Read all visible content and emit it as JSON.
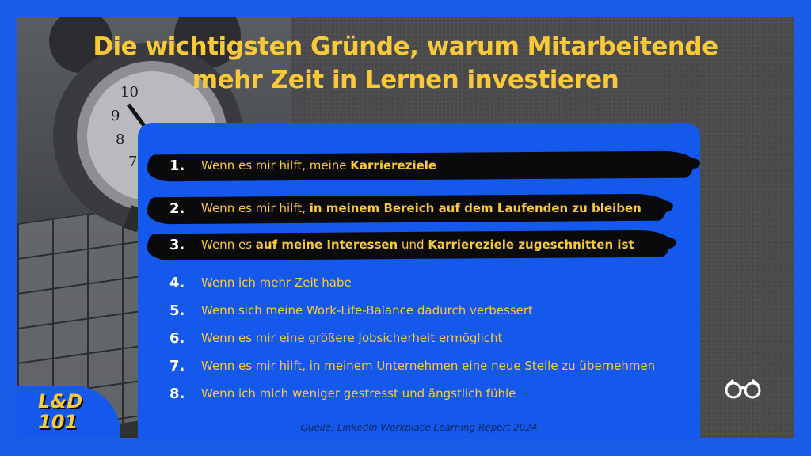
{
  "title_line1": "Die wichtigsten Gründe, warum Mitarbeitende",
  "title_line2": "mehr Zeit in Lernen investieren",
  "reasons": [
    {
      "number": "1.",
      "pre": "Wenn es mir hilft, meine ",
      "bold1": "Karriereziele",
      "mid": "",
      "bold2": "",
      "post": "",
      "highlighted": true
    },
    {
      "number": "2.",
      "pre": "Wenn es mir hilft, ",
      "bold1": "in meinem Bereich auf dem Laufenden zu bleiben",
      "mid": "",
      "bold2": "",
      "post": "",
      "highlighted": true
    },
    {
      "number": "3.",
      "pre": "Wenn es ",
      "bold1": "auf meine Interessen",
      "mid": " und ",
      "bold2": "Karriereziele zugeschnitten ist",
      "post": "",
      "highlighted": true
    },
    {
      "number": "4.",
      "pre": "Wenn ich mehr Zeit habe",
      "highlighted": false
    },
    {
      "number": "5.",
      "pre": "Wenn sich meine Work-Life-Balance dadurch verbessert",
      "highlighted": false
    },
    {
      "number": "6.",
      "pre": "Wenn es mir eine größere Jobsicherheit ermöglicht",
      "highlighted": false
    },
    {
      "number": "7.",
      "pre": "Wenn es mir hilft, in meinem Unternehmen eine neue Stelle zu übernehmen",
      "highlighted": false
    },
    {
      "number": "8.",
      "pre": "Wenn ich mich weniger gestresst und ängstlich fühle",
      "highlighted": false
    }
  ],
  "source": "Quelle: LinkedIn Workplace Learning Report 2024",
  "logo": {
    "line1": "L&D",
    "line2": "101"
  },
  "colors": {
    "accent": "#f9c93a",
    "brand_blue": "#1558ec",
    "background": "#4b4b4e"
  },
  "icons": {
    "brand": "glasses-icon",
    "photo": "alarm-clock-icon"
  }
}
